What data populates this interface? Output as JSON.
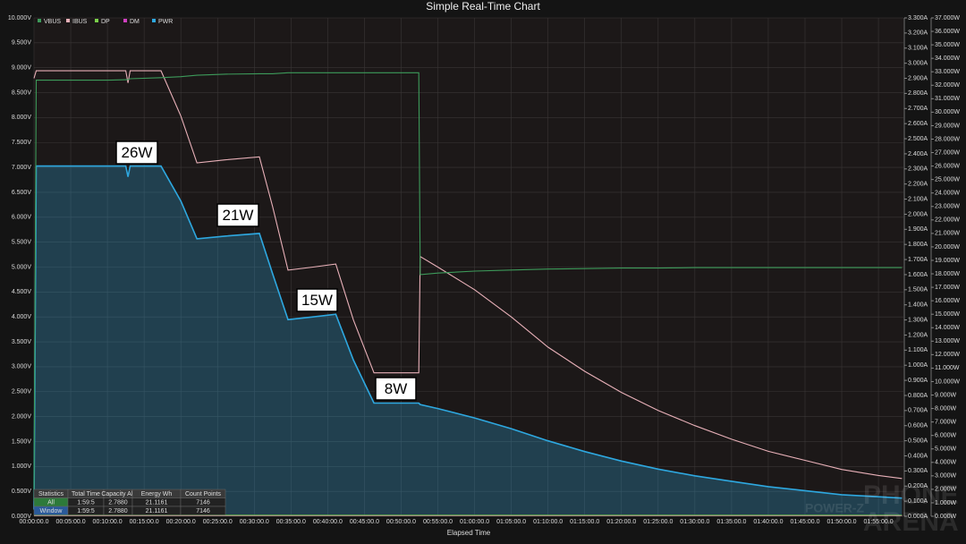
{
  "chart_data": {
    "type": "line",
    "title": "Simple Real-Time Chart",
    "x_label": "Elapsed Time",
    "x": [
      0,
      0.3,
      5,
      10,
      12.5,
      12.8,
      13.1,
      17.3,
      20,
      22.2,
      26,
      30.7,
      32.5,
      34.6,
      38,
      41.1,
      43.5,
      46.3,
      49,
      52.4,
      52.6,
      55,
      60,
      65,
      70,
      75,
      80,
      85,
      90,
      95,
      100,
      105,
      110,
      115,
      118.2
    ],
    "xlim": [
      0,
      118.4
    ],
    "xticks": [
      {
        "value": 0,
        "label": "00:00:00.0"
      },
      {
        "value": 5,
        "label": "00:05:00.0"
      },
      {
        "value": 10,
        "label": "00:10:00.0"
      },
      {
        "value": 15,
        "label": "00:15:00.0"
      },
      {
        "value": 20,
        "label": "00:20:00.0"
      },
      {
        "value": 25,
        "label": "00:25:00.0"
      },
      {
        "value": 30,
        "label": "00:30:00.0"
      },
      {
        "value": 35,
        "label": "00:35:00.0"
      },
      {
        "value": 40,
        "label": "00:40:00.0"
      },
      {
        "value": 45,
        "label": "00:45:00.0"
      },
      {
        "value": 50,
        "label": "00:50:00.0"
      },
      {
        "value": 55,
        "label": "00:55:00.0"
      },
      {
        "value": 60,
        "label": "01:00:00.0"
      },
      {
        "value": 65,
        "label": "01:05:00.0"
      },
      {
        "value": 70,
        "label": "01:10:00.0"
      },
      {
        "value": 75,
        "label": "01:15:00.0"
      },
      {
        "value": 80,
        "label": "01:20:00.0"
      },
      {
        "value": 85,
        "label": "01:25:00.0"
      },
      {
        "value": 90,
        "label": "01:30:00.0"
      },
      {
        "value": 95,
        "label": "01:35:00.0"
      },
      {
        "value": 100,
        "label": "01:40:00.0"
      },
      {
        "value": 105,
        "label": "01:45:00.0"
      },
      {
        "value": 110,
        "label": "01:50:00.0"
      },
      {
        "value": 115,
        "label": "01:55:00.0"
      }
    ],
    "ylim": [
      0,
      10
    ],
    "yticks": [
      {
        "value": 0,
        "label": "0.000V"
      },
      {
        "value": 0.5,
        "label": "0.500V"
      },
      {
        "value": 1,
        "label": "1.000V"
      },
      {
        "value": 1.5,
        "label": "1.500V"
      },
      {
        "value": 2,
        "label": "2.000V"
      },
      {
        "value": 2.5,
        "label": "2.500V"
      },
      {
        "value": 3,
        "label": "3.000V"
      },
      {
        "value": 3.5,
        "label": "3.500V"
      },
      {
        "value": 4,
        "label": "4.000V"
      },
      {
        "value": 4.5,
        "label": "4.500V"
      },
      {
        "value": 5,
        "label": "5.000V"
      },
      {
        "value": 5.5,
        "label": "5.500V"
      },
      {
        "value": 6,
        "label": "6.000V"
      },
      {
        "value": 6.5,
        "label": "6.500V"
      },
      {
        "value": 7,
        "label": "7.000V"
      },
      {
        "value": 7.5,
        "label": "7.500V"
      },
      {
        "value": 8,
        "label": "8.000V"
      },
      {
        "value": 8.5,
        "label": "8.500V"
      },
      {
        "value": 9,
        "label": "9.000V"
      },
      {
        "value": 9.5,
        "label": "9.500V"
      },
      {
        "value": 10,
        "label": "10.000V"
      }
    ],
    "y2lim": [
      0,
      3.3
    ],
    "y2ticks": [
      {
        "value": 0,
        "label": "0.000A"
      },
      {
        "value": 0.1,
        "label": "0.100A"
      },
      {
        "value": 0.2,
        "label": "0.200A"
      },
      {
        "value": 0.3,
        "label": "0.300A"
      },
      {
        "value": 0.4,
        "label": "0.400A"
      },
      {
        "value": 0.5,
        "label": "0.500A"
      },
      {
        "value": 0.6,
        "label": "0.600A"
      },
      {
        "value": 0.7,
        "label": "0.700A"
      },
      {
        "value": 0.8,
        "label": "0.800A"
      },
      {
        "value": 0.9,
        "label": "0.900A"
      },
      {
        "value": 1,
        "label": "1.000A"
      },
      {
        "value": 1.1,
        "label": "1.100A"
      },
      {
        "value": 1.2,
        "label": "1.200A"
      },
      {
        "value": 1.3,
        "label": "1.300A"
      },
      {
        "value": 1.4,
        "label": "1.400A"
      },
      {
        "value": 1.5,
        "label": "1.500A"
      },
      {
        "value": 1.6,
        "label": "1.600A"
      },
      {
        "value": 1.7,
        "label": "1.700A"
      },
      {
        "value": 1.8,
        "label": "1.800A"
      },
      {
        "value": 1.9,
        "label": "1.900A"
      },
      {
        "value": 2,
        "label": "2.000A"
      },
      {
        "value": 2.1,
        "label": "2.100A"
      },
      {
        "value": 2.2,
        "label": "2.200A"
      },
      {
        "value": 2.3,
        "label": "2.300A"
      },
      {
        "value": 2.4,
        "label": "2.400A"
      },
      {
        "value": 2.5,
        "label": "2.500A"
      },
      {
        "value": 2.6,
        "label": "2.600A"
      },
      {
        "value": 2.7,
        "label": "2.700A"
      },
      {
        "value": 2.8,
        "label": "2.800A"
      },
      {
        "value": 2.9,
        "label": "2.900A"
      },
      {
        "value": 3,
        "label": "3.000A"
      },
      {
        "value": 3.1,
        "label": "3.100A"
      },
      {
        "value": 3.2,
        "label": "3.200A"
      },
      {
        "value": 3.3,
        "label": "3.300A"
      }
    ],
    "y3lim": [
      0,
      37
    ],
    "y3ticks": [
      {
        "value": 0,
        "label": "0.000W"
      },
      {
        "value": 1,
        "label": "1.000W"
      },
      {
        "value": 2,
        "label": "2.000W"
      },
      {
        "value": 3,
        "label": "3.000W"
      },
      {
        "value": 4,
        "label": "4.000W"
      },
      {
        "value": 5,
        "label": "5.000W"
      },
      {
        "value": 6,
        "label": "6.000W"
      },
      {
        "value": 7,
        "label": "7.000W"
      },
      {
        "value": 8,
        "label": "8.000W"
      },
      {
        "value": 9,
        "label": "9.000W"
      },
      {
        "value": 10,
        "label": "10.000W"
      },
      {
        "value": 11,
        "label": "11.000W"
      },
      {
        "value": 12,
        "label": "12.000W"
      },
      {
        "value": 13,
        "label": "13.000W"
      },
      {
        "value": 14,
        "label": "14.000W"
      },
      {
        "value": 15,
        "label": "15.000W"
      },
      {
        "value": 16,
        "label": "16.000W"
      },
      {
        "value": 17,
        "label": "17.000W"
      },
      {
        "value": 18,
        "label": "18.000W"
      },
      {
        "value": 19,
        "label": "19.000W"
      },
      {
        "value": 20,
        "label": "20.000W"
      },
      {
        "value": 21,
        "label": "21.000W"
      },
      {
        "value": 22,
        "label": "22.000W"
      },
      {
        "value": 23,
        "label": "23.000W"
      },
      {
        "value": 24,
        "label": "24.000W"
      },
      {
        "value": 25,
        "label": "25.000W"
      },
      {
        "value": 26,
        "label": "26.000W"
      },
      {
        "value": 27,
        "label": "27.000W"
      },
      {
        "value": 28,
        "label": "28.000W"
      },
      {
        "value": 29,
        "label": "29.000W"
      },
      {
        "value": 30,
        "label": "30.000W"
      },
      {
        "value": 31,
        "label": "31.000W"
      },
      {
        "value": 32,
        "label": "32.000W"
      },
      {
        "value": 33,
        "label": "33.000W"
      },
      {
        "value": 34,
        "label": "34.000W"
      },
      {
        "value": 35,
        "label": "35.000W"
      },
      {
        "value": 36,
        "label": "36.000W"
      },
      {
        "value": 37,
        "label": "37.000W"
      }
    ],
    "grid": true,
    "legend": "top-left",
    "series": [
      {
        "name": "VBUS",
        "color": "#3d9a5a",
        "axis": "y",
        "values": [
          0.3,
          8.75,
          8.75,
          8.75,
          8.76,
          8.76,
          8.78,
          8.8,
          8.82,
          8.85,
          8.87,
          8.88,
          8.88,
          8.9,
          8.9,
          8.9,
          8.9,
          8.9,
          8.9,
          8.9,
          4.85,
          4.88,
          4.92,
          4.94,
          4.96,
          4.97,
          4.98,
          4.98,
          4.99,
          4.99,
          4.99,
          4.99,
          4.99,
          4.99,
          4.99
        ]
      },
      {
        "name": "IBUS",
        "color": "#e8b0b8",
        "axis": "y2",
        "values": [
          2.9,
          2.95,
          2.95,
          2.95,
          2.95,
          2.87,
          2.95,
          2.95,
          2.65,
          2.34,
          2.36,
          2.38,
          2.05,
          1.63,
          1.65,
          1.67,
          1.3,
          0.95,
          0.95,
          0.95,
          1.72,
          1.65,
          1.5,
          1.32,
          1.12,
          0.96,
          0.82,
          0.7,
          0.6,
          0.51,
          0.43,
          0.37,
          0.31,
          0.27,
          0.25
        ]
      },
      {
        "name": "DP",
        "color": "#7ad04a",
        "axis": "y",
        "values": [
          0.02,
          0.02,
          0.02,
          0.02,
          0.02,
          0.02,
          0.02,
          0.02,
          0.02,
          0.02,
          0.02,
          0.02,
          0.02,
          0.02,
          0.02,
          0.02,
          0.02,
          0.02,
          0.02,
          0.02,
          0.02,
          0.02,
          0.02,
          0.02,
          0.02,
          0.02,
          0.02,
          0.02,
          0.02,
          0.02,
          0.02,
          0.02,
          0.02,
          0.02,
          0.02
        ]
      },
      {
        "name": "DM",
        "color": "#d040c0",
        "axis": "y",
        "values": [
          0.01,
          0.01,
          0.01,
          0.01,
          0.01,
          0.01,
          0.01,
          0.01,
          0.01,
          0.01,
          0.01,
          0.01,
          0.01,
          0.01,
          0.01,
          0.01,
          0.01,
          0.01,
          0.01,
          0.01,
          0.01,
          0.01,
          0.01,
          0.01,
          0.01,
          0.01,
          0.01,
          0.01,
          0.01,
          0.01,
          0.01,
          0.01,
          0.01,
          0.01,
          0.01
        ]
      },
      {
        "name": "PWR",
        "color": "#2ea8e0",
        "axis": "y3",
        "area": true,
        "values": [
          0.5,
          26,
          26,
          26,
          26,
          25.2,
          26,
          26,
          23.4,
          20.6,
          20.8,
          21,
          18,
          14.6,
          14.8,
          15,
          11.6,
          8.4,
          8.4,
          8.4,
          8.3,
          8.0,
          7.3,
          6.5,
          5.6,
          4.8,
          4.1,
          3.5,
          3.0,
          2.6,
          2.2,
          1.9,
          1.6,
          1.45,
          1.35
        ]
      }
    ],
    "annotations": [
      "26W",
      "21W",
      "15W",
      "8W"
    ],
    "statistics": {
      "headers": [
        "Statistics",
        "Total Time",
        "Capacity Ah",
        "Energy Wh",
        "Count Points"
      ],
      "rows": [
        [
          "All",
          "1:59:5",
          "2.7880",
          "21.1161",
          "7146"
        ],
        [
          "Window",
          "1:59:5",
          "2.7880",
          "21.1161",
          "7146"
        ]
      ]
    },
    "watermark": [
      "PHONE",
      "ARENA",
      "POWER-Z"
    ]
  }
}
